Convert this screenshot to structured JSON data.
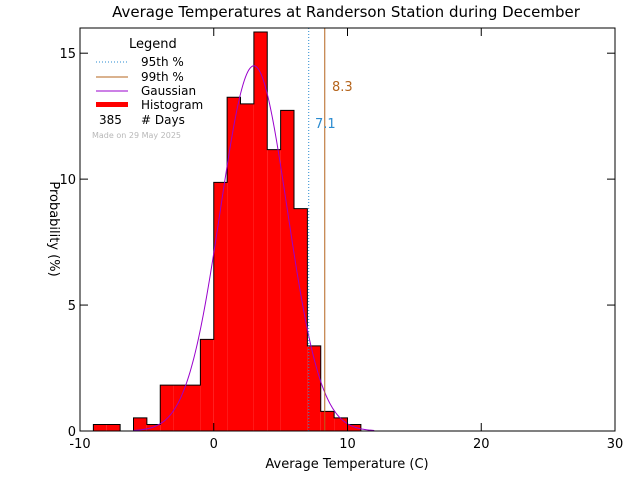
{
  "chart_data": {
    "type": "bar",
    "title": "Average Temperatures at Randerson Station during December",
    "xlabel": "Average Temperature (C)",
    "ylabel": "Probability (%)",
    "xlim": [
      -10,
      30
    ],
    "ylim": [
      0,
      16
    ],
    "x_ticks": [
      "-10",
      "0",
      "10",
      "20",
      "30"
    ],
    "y_ticks": [
      "0",
      "5",
      "10",
      "15"
    ],
    "grid": false,
    "bin_width": 1,
    "histogram": {
      "name": "Histogram",
      "color": "#ff0000",
      "bins": [
        {
          "left": -9,
          "value": 0.26
        },
        {
          "left": -8,
          "value": 0.26
        },
        {
          "left": -6,
          "value": 0.52
        },
        {
          "left": -5,
          "value": 0.26
        },
        {
          "left": -4,
          "value": 1.82
        },
        {
          "left": -3,
          "value": 1.82
        },
        {
          "left": -2,
          "value": 1.82
        },
        {
          "left": -1,
          "value": 3.64
        },
        {
          "left": 0,
          "value": 9.87
        },
        {
          "left": 1,
          "value": 13.25
        },
        {
          "left": 2,
          "value": 12.99
        },
        {
          "left": 3,
          "value": 15.84
        },
        {
          "left": 4,
          "value": 11.17
        },
        {
          "left": 5,
          "value": 12.73
        },
        {
          "left": 6,
          "value": 8.83
        },
        {
          "left": 7,
          "value": 3.38
        },
        {
          "left": 8,
          "value": 0.78
        },
        {
          "left": 9,
          "value": 0.52
        },
        {
          "left": 10,
          "value": 0.26
        }
      ]
    },
    "gaussian": {
      "name": "Gaussian",
      "color": "#9900cc",
      "mean": 3.0,
      "sigma": 2.5,
      "peak": 14.5,
      "x_range": [
        -6,
        12
      ]
    },
    "percentiles": [
      {
        "name": "95th %",
        "value": 7.1,
        "label": "7.1",
        "color": "#2a8bd0"
      },
      {
        "name": "99th %",
        "value": 8.3,
        "label": "8.3",
        "color": "#b5651d"
      }
    ],
    "legend": {
      "title": "Legend",
      "placement": "top-left",
      "entries": [
        "95th %",
        "99th %",
        "Gaussian",
        "Histogram"
      ],
      "days_count": "385",
      "days_label": "# Days",
      "made_on": "Made on 29 May 2025"
    }
  }
}
